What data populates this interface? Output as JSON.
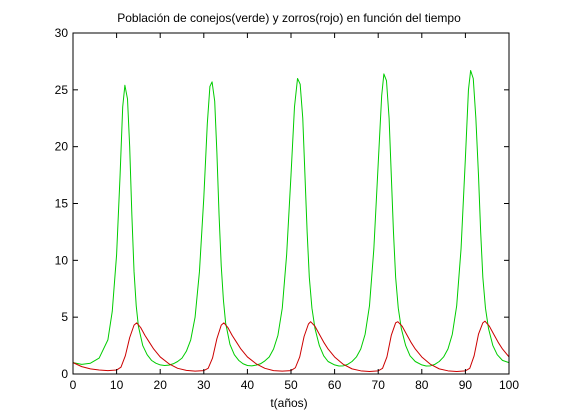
{
  "chart_data": {
    "type": "line",
    "title": "Población de conejos(verde) y zorros(rojo) en función del tiempo",
    "xlabel": "t(años)",
    "ylabel": "",
    "xlim": [
      0,
      100
    ],
    "ylim": [
      0,
      30
    ],
    "x_ticks": [
      0,
      10,
      20,
      30,
      40,
      50,
      60,
      70,
      80,
      90,
      100
    ],
    "y_ticks": [
      0,
      5,
      10,
      15,
      20,
      25,
      30
    ],
    "grid": false,
    "legend": "none",
    "series": [
      {
        "color": "#00cc00",
        "points": [
          [
            0,
            1.0
          ],
          [
            2,
            0.85
          ],
          [
            4,
            0.95
          ],
          [
            6,
            1.4
          ],
          [
            8,
            3.0
          ],
          [
            9,
            5.5
          ],
          [
            10,
            10.5
          ],
          [
            10.8,
            17.5
          ],
          [
            11.4,
            23.5
          ],
          [
            11.9,
            25.4
          ],
          [
            12.5,
            24.2
          ],
          [
            13,
            20.0
          ],
          [
            13.5,
            14.0
          ],
          [
            14,
            9.0
          ],
          [
            14.5,
            6.0
          ],
          [
            15,
            4.2
          ],
          [
            16,
            2.5
          ],
          [
            17,
            1.7
          ],
          [
            18,
            1.2
          ],
          [
            19,
            0.95
          ],
          [
            20,
            0.8
          ],
          [
            21,
            0.75
          ],
          [
            22,
            0.78
          ],
          [
            23,
            0.9
          ],
          [
            24,
            1.1
          ],
          [
            25,
            1.4
          ],
          [
            26,
            2.0
          ],
          [
            27,
            3.0
          ],
          [
            28,
            5.0
          ],
          [
            29,
            9.0
          ],
          [
            30,
            15.5
          ],
          [
            30.8,
            22.0
          ],
          [
            31.4,
            25.3
          ],
          [
            31.9,
            25.7
          ],
          [
            32.5,
            24.0
          ],
          [
            33,
            19.5
          ],
          [
            33.5,
            14.0
          ],
          [
            34,
            9.5
          ],
          [
            34.5,
            6.5
          ],
          [
            35,
            4.5
          ],
          [
            36,
            2.6
          ],
          [
            37,
            1.7
          ],
          [
            38,
            1.2
          ],
          [
            39,
            0.9
          ],
          [
            40,
            0.75
          ],
          [
            41,
            0.72
          ],
          [
            42,
            0.78
          ],
          [
            43,
            0.9
          ],
          [
            44,
            1.15
          ],
          [
            45,
            1.5
          ],
          [
            46,
            2.2
          ],
          [
            47,
            3.4
          ],
          [
            48,
            5.8
          ],
          [
            49,
            10.5
          ],
          [
            50,
            17.5
          ],
          [
            50.8,
            23.5
          ],
          [
            51.5,
            26.0
          ],
          [
            52.1,
            25.5
          ],
          [
            52.7,
            22.5
          ],
          [
            53.2,
            17.5
          ],
          [
            53.7,
            12.5
          ],
          [
            54.2,
            8.5
          ],
          [
            54.8,
            5.8
          ],
          [
            55.5,
            4.0
          ],
          [
            56.5,
            2.5
          ],
          [
            57.5,
            1.6
          ],
          [
            58.5,
            1.1
          ],
          [
            60,
            0.8
          ],
          [
            61,
            0.7
          ],
          [
            62,
            0.72
          ],
          [
            63,
            0.85
          ],
          [
            64,
            1.1
          ],
          [
            65,
            1.5
          ],
          [
            66,
            2.2
          ],
          [
            67,
            3.5
          ],
          [
            68,
            6.0
          ],
          [
            69,
            11.0
          ],
          [
            70,
            18.5
          ],
          [
            70.8,
            24.5
          ],
          [
            71.3,
            26.4
          ],
          [
            71.9,
            25.8
          ],
          [
            72.5,
            22.5
          ],
          [
            73,
            17.5
          ],
          [
            73.5,
            12.5
          ],
          [
            74,
            8.5
          ],
          [
            74.6,
            5.8
          ],
          [
            75.3,
            4.0
          ],
          [
            76.3,
            2.5
          ],
          [
            77.3,
            1.6
          ],
          [
            78.5,
            1.1
          ],
          [
            80,
            0.8
          ],
          [
            81,
            0.7
          ],
          [
            82,
            0.72
          ],
          [
            83,
            0.85
          ],
          [
            84,
            1.1
          ],
          [
            85,
            1.5
          ],
          [
            86,
            2.2
          ],
          [
            87,
            3.5
          ],
          [
            88,
            6.0
          ],
          [
            89,
            11.0
          ],
          [
            90,
            19.0
          ],
          [
            90.7,
            25.0
          ],
          [
            91.2,
            26.7
          ],
          [
            91.8,
            26.0
          ],
          [
            92.4,
            22.5
          ],
          [
            93,
            17.5
          ],
          [
            93.5,
            12.5
          ],
          [
            94,
            8.5
          ],
          [
            94.6,
            5.8
          ],
          [
            95.3,
            4.0
          ],
          [
            96.3,
            2.5
          ],
          [
            97.3,
            1.7
          ],
          [
            98.5,
            1.2
          ],
          [
            100,
            1.0
          ]
        ]
      },
      {
        "color": "#cc0000",
        "points": [
          [
            0,
            1.0
          ],
          [
            2,
            0.65
          ],
          [
            4,
            0.45
          ],
          [
            6,
            0.35
          ],
          [
            8,
            0.3
          ],
          [
            10,
            0.35
          ],
          [
            11,
            0.6
          ],
          [
            12,
            1.6
          ],
          [
            13,
            3.2
          ],
          [
            14,
            4.3
          ],
          [
            14.6,
            4.5
          ],
          [
            15.5,
            4.1
          ],
          [
            16.5,
            3.4
          ],
          [
            17.5,
            2.8
          ],
          [
            18.5,
            2.2
          ],
          [
            20,
            1.5
          ],
          [
            22,
            0.9
          ],
          [
            24,
            0.5
          ],
          [
            26,
            0.32
          ],
          [
            28,
            0.25
          ],
          [
            30,
            0.3
          ],
          [
            31,
            0.5
          ],
          [
            32,
            1.4
          ],
          [
            33,
            3.1
          ],
          [
            34,
            4.3
          ],
          [
            34.6,
            4.5
          ],
          [
            35.5,
            4.1
          ],
          [
            36.5,
            3.4
          ],
          [
            37.5,
            2.8
          ],
          [
            38.5,
            2.2
          ],
          [
            40,
            1.5
          ],
          [
            42,
            0.9
          ],
          [
            44,
            0.5
          ],
          [
            46,
            0.3
          ],
          [
            48,
            0.25
          ],
          [
            50,
            0.3
          ],
          [
            51,
            0.55
          ],
          [
            52,
            1.5
          ],
          [
            53,
            3.3
          ],
          [
            54,
            4.4
          ],
          [
            54.5,
            4.6
          ],
          [
            55.5,
            4.2
          ],
          [
            56.5,
            3.5
          ],
          [
            57.5,
            2.8
          ],
          [
            58.5,
            2.2
          ],
          [
            60,
            1.5
          ],
          [
            62,
            0.85
          ],
          [
            64,
            0.45
          ],
          [
            66,
            0.28
          ],
          [
            68,
            0.22
          ],
          [
            70,
            0.28
          ],
          [
            71,
            0.5
          ],
          [
            72,
            1.5
          ],
          [
            73,
            3.4
          ],
          [
            74,
            4.5
          ],
          [
            74.5,
            4.6
          ],
          [
            75.5,
            4.2
          ],
          [
            76.5,
            3.5
          ],
          [
            77.5,
            2.8
          ],
          [
            78.5,
            2.2
          ],
          [
            80,
            1.5
          ],
          [
            82,
            0.85
          ],
          [
            84,
            0.45
          ],
          [
            86,
            0.28
          ],
          [
            88,
            0.22
          ],
          [
            90,
            0.28
          ],
          [
            91,
            0.5
          ],
          [
            92,
            1.6
          ],
          [
            93,
            3.5
          ],
          [
            94,
            4.5
          ],
          [
            94.5,
            4.65
          ],
          [
            95.5,
            4.2
          ],
          [
            96.5,
            3.5
          ],
          [
            97.5,
            2.8
          ],
          [
            98.5,
            2.2
          ],
          [
            100,
            1.5
          ]
        ]
      }
    ]
  }
}
